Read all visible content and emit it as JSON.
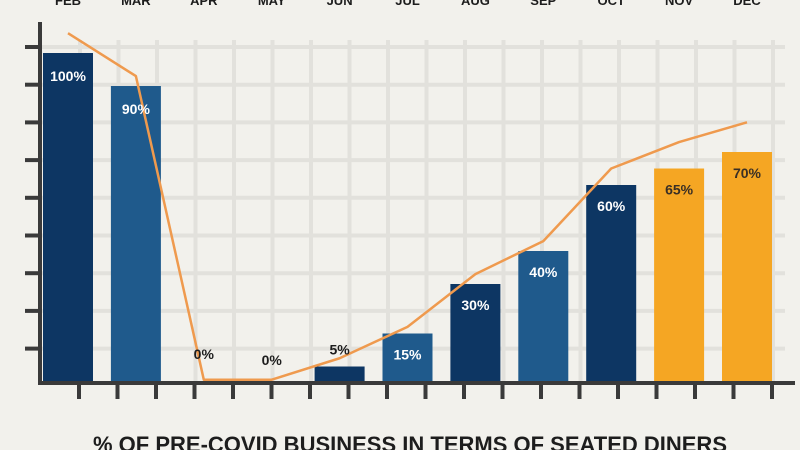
{
  "chart_data": {
    "type": "bar",
    "title": "% OF PRE-COVID BUSINESS IN TERMS OF SEATED DINERS",
    "categories": [
      "FEB",
      "MAR",
      "APR",
      "MAY",
      "JUN",
      "JUL",
      "AUG",
      "SEP",
      "OCT",
      "NOV",
      "DEC"
    ],
    "series": [
      {
        "type": "bar",
        "values": [
          100,
          90,
          0,
          0,
          5,
          15,
          30,
          40,
          60,
          65,
          70
        ],
        "labels": [
          "100%",
          "90%",
          "0%",
          "0%",
          "5%",
          "15%",
          "30%",
          "40%",
          "60%",
          "65%",
          "70%"
        ]
      },
      {
        "type": "line",
        "values": [
          106,
          93,
          1,
          1,
          7.5,
          17,
          33,
          43,
          65,
          73,
          79
        ]
      }
    ],
    "ylim": [
      0,
      110
    ],
    "grid": true,
    "colors": {
      "background": "#f2f1ec",
      "grid": "#e2e1dc",
      "axis": "#3a3a3a",
      "bar_dark": "#0d3663",
      "bar_medium": "#1f5a8c",
      "bar_highlight": "#f5a623",
      "line": "#ef9a4e",
      "label_light": "#ffffff",
      "label_dark": "#3a2f25"
    },
    "bar_color_keys": [
      "bar_dark",
      "bar_medium",
      "bar_dark",
      "bar_dark",
      "bar_dark",
      "bar_medium",
      "bar_dark",
      "bar_medium",
      "bar_dark",
      "bar_highlight",
      "bar_highlight"
    ]
  }
}
